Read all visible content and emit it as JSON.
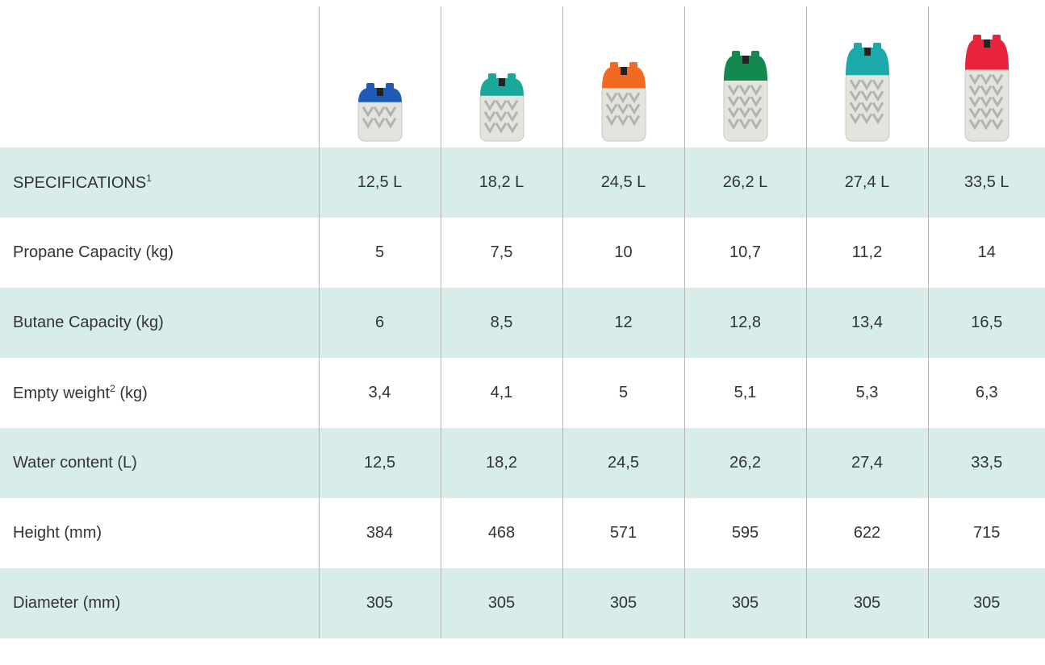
{
  "table": {
    "rows": [
      {
        "label": {
          "text": "SPECIFICATIONS",
          "sup": "1"
        },
        "cells": [
          "12,5 L",
          "18,2 L",
          "24,5 L",
          "26,2 L",
          "27,4 L",
          "33,5 L"
        ]
      },
      {
        "label": {
          "text": "Propane Capacity (kg)"
        },
        "cells": [
          "5",
          "7,5",
          "10",
          "10,7",
          "11,2",
          "14"
        ]
      },
      {
        "label": {
          "text": "Butane Capacity (kg)"
        },
        "cells": [
          "6",
          "8,5",
          "12",
          "12,8",
          "13,4",
          "16,5"
        ]
      },
      {
        "label": {
          "text": "Empty weight",
          "sup": "2",
          "after": "(kg)"
        },
        "cells": [
          "3,4",
          "4,1",
          "5",
          "5,1",
          "5,3",
          "6,3"
        ]
      },
      {
        "label": {
          "text": "Water content (L)"
        },
        "cells": [
          "12,5",
          "18,2",
          "24,5",
          "26,2",
          "27,4",
          "33,5"
        ]
      },
      {
        "label": {
          "text": "Height (mm)"
        },
        "cells": [
          "384",
          "468",
          "571",
          "595",
          "622",
          "715"
        ]
      },
      {
        "label": {
          "text": "Diameter (mm)"
        },
        "cells": [
          "305",
          "305",
          "305",
          "305",
          "305",
          "305"
        ]
      }
    ]
  }
}
